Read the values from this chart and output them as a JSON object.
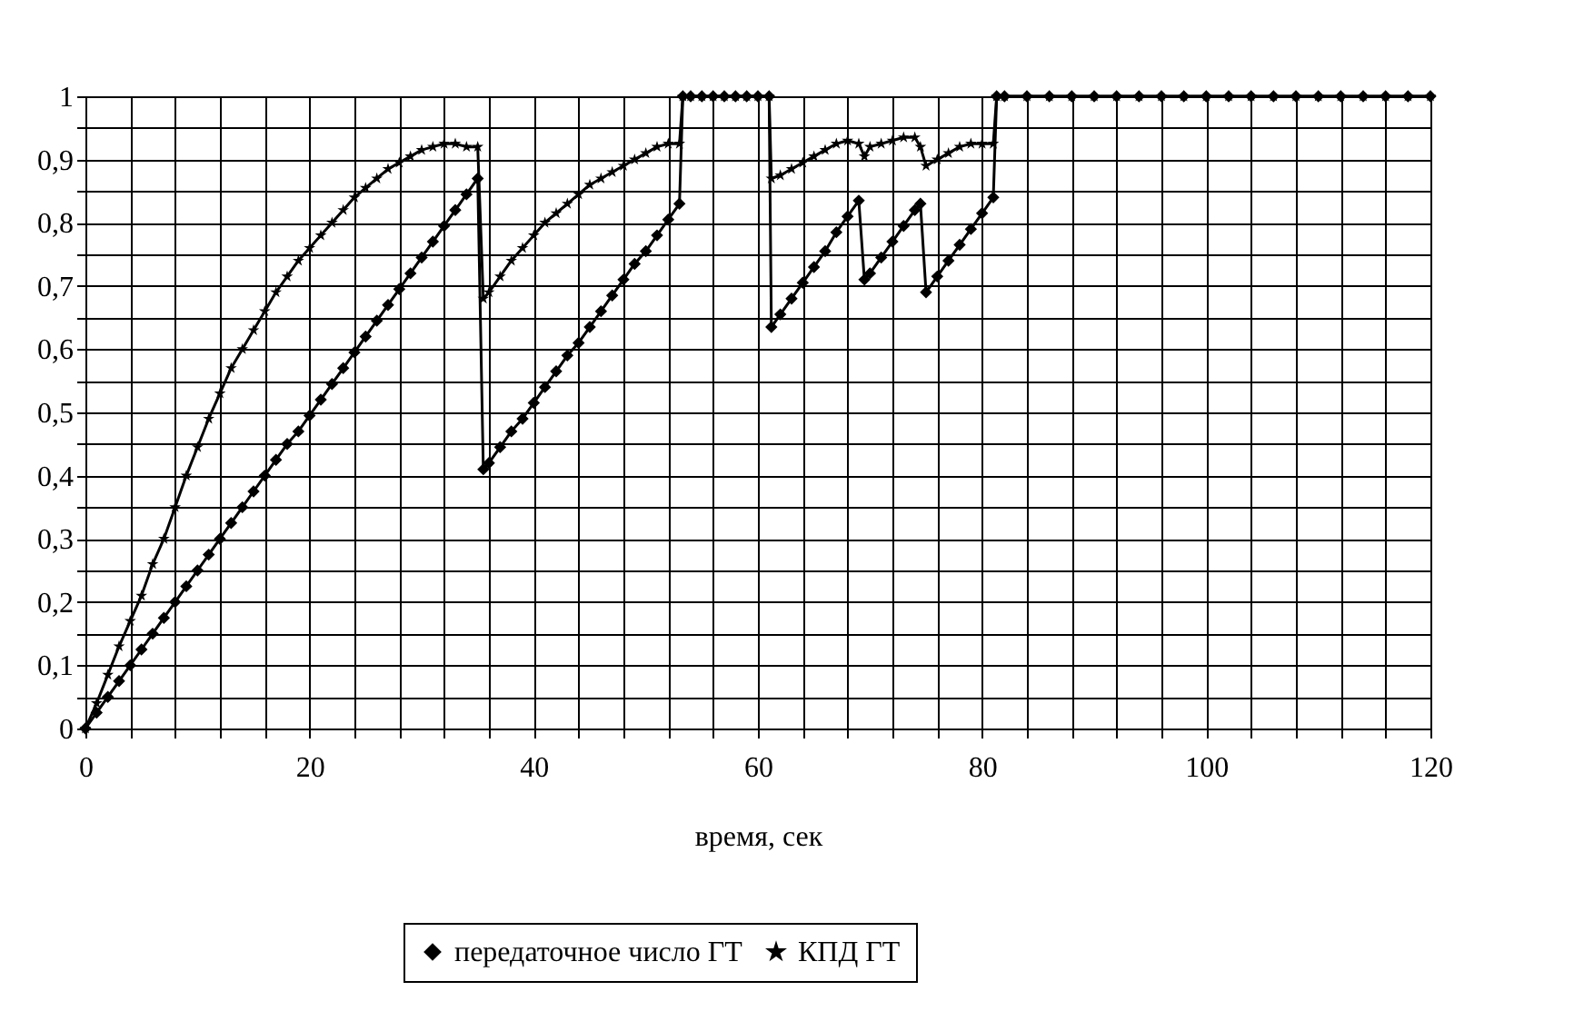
{
  "chart_data": {
    "type": "line",
    "xlabel": "время, сек",
    "x": [
      0,
      1,
      2,
      3,
      4,
      5,
      6,
      7,
      8,
      9,
      10,
      11,
      12,
      13,
      14,
      15,
      16,
      17,
      18,
      19,
      20,
      21,
      22,
      23,
      24,
      25,
      26,
      27,
      28,
      29,
      30,
      31,
      32,
      33,
      34,
      35,
      35.5,
      36,
      37,
      38,
      39,
      40,
      41,
      42,
      43,
      44,
      45,
      46,
      47,
      48,
      49,
      50,
      51,
      52,
      53,
      53.3,
      54,
      55,
      56,
      57,
      58,
      59,
      60,
      61,
      61.2,
      62,
      63,
      64,
      65,
      66,
      67,
      68,
      69,
      69.5,
      70,
      71,
      72,
      73,
      74,
      74.5,
      75,
      76,
      77,
      78,
      79,
      80,
      81,
      81.3,
      82,
      84,
      86,
      88,
      90,
      92,
      94,
      96,
      98,
      100,
      102,
      104,
      106,
      108,
      110,
      112,
      114,
      116,
      118,
      120
    ],
    "series": [
      {
        "name": "передаточное число ГТ",
        "color": "#000000",
        "marker": "diamond",
        "values": [
          0,
          0.025,
          0.05,
          0.075,
          0.1,
          0.125,
          0.15,
          0.175,
          0.2,
          0.225,
          0.25,
          0.275,
          0.3,
          0.325,
          0.35,
          0.375,
          0.4,
          0.425,
          0.45,
          0.47,
          0.495,
          0.52,
          0.545,
          0.57,
          0.595,
          0.62,
          0.645,
          0.67,
          0.695,
          0.72,
          0.745,
          0.77,
          0.795,
          0.82,
          0.845,
          0.87,
          0.41,
          0.42,
          0.445,
          0.47,
          0.49,
          0.515,
          0.54,
          0.565,
          0.59,
          0.61,
          0.635,
          0.66,
          0.685,
          0.71,
          0.735,
          0.755,
          0.78,
          0.805,
          0.83,
          1,
          1,
          1,
          1,
          1,
          1,
          1,
          1,
          1,
          0.635,
          0.655,
          0.68,
          0.705,
          0.73,
          0.755,
          0.785,
          0.81,
          0.835,
          0.71,
          0.72,
          0.745,
          0.77,
          0.795,
          0.82,
          0.83,
          0.69,
          0.715,
          0.74,
          0.765,
          0.79,
          0.815,
          0.84,
          1,
          1,
          1,
          1,
          1,
          1,
          1,
          1,
          1,
          1,
          1,
          1,
          1,
          1,
          1,
          1,
          1,
          1,
          1,
          1,
          1
        ]
      },
      {
        "name": "КПД ГТ",
        "color": "#000000",
        "marker": "star",
        "values": [
          0,
          0.04,
          0.085,
          0.13,
          0.17,
          0.21,
          0.26,
          0.3,
          0.35,
          0.4,
          0.445,
          0.49,
          0.53,
          0.57,
          0.6,
          0.63,
          0.66,
          0.69,
          0.715,
          0.74,
          0.76,
          0.78,
          0.8,
          0.82,
          0.84,
          0.855,
          0.87,
          0.885,
          0.895,
          0.905,
          0.915,
          0.92,
          0.925,
          0.925,
          0.92,
          0.92,
          0.68,
          0.69,
          0.715,
          0.74,
          0.76,
          0.78,
          0.8,
          0.815,
          0.83,
          0.845,
          0.86,
          0.87,
          0.88,
          0.89,
          0.9,
          0.91,
          0.92,
          0.925,
          0.925,
          1,
          1,
          1,
          1,
          1,
          1,
          1,
          1,
          1,
          0.87,
          0.875,
          0.885,
          0.895,
          0.905,
          0.915,
          0.925,
          0.93,
          0.925,
          0.905,
          0.92,
          0.925,
          0.93,
          0.935,
          0.935,
          0.92,
          0.89,
          0.9,
          0.91,
          0.92,
          0.925,
          0.925,
          0.925,
          1,
          1,
          1,
          1,
          1,
          1,
          1,
          1,
          1,
          1,
          1,
          1,
          1,
          1,
          1,
          1,
          1,
          1,
          1,
          1,
          1
        ]
      }
    ],
    "xlim": [
      0,
      120
    ],
    "xticks": [
      0,
      {
        "value": 4,
        "label": null
      },
      {
        "value": 8,
        "label": null
      },
      {
        "value": 12,
        "label": null
      },
      {
        "value": 16,
        "label": null
      },
      20,
      {
        "value": 24,
        "label": null
      },
      {
        "value": 28,
        "label": null
      },
      {
        "value": 32,
        "label": null
      },
      {
        "value": 36,
        "label": null
      },
      40,
      {
        "value": 44,
        "label": null
      },
      {
        "value": 48,
        "label": null
      },
      {
        "value": 52,
        "label": null
      },
      {
        "value": 56,
        "label": null
      },
      60,
      {
        "value": 64,
        "label": null
      },
      {
        "value": 68,
        "label": null
      },
      {
        "value": 72,
        "label": null
      },
      {
        "value": 76,
        "label": null
      },
      80,
      {
        "value": 84,
        "label": null
      },
      {
        "value": 88,
        "label": null
      },
      {
        "value": 92,
        "label": null
      },
      {
        "value": 96,
        "label": null
      },
      100,
      {
        "value": 104,
        "label": null
      },
      {
        "value": 108,
        "label": null
      },
      {
        "value": 112,
        "label": null
      },
      {
        "value": 116,
        "label": null
      },
      120
    ],
    "ylim": [
      0,
      1
    ],
    "yticks": [
      0,
      {
        "value": 0.05,
        "label": null
      },
      {
        "value": 0.1,
        "label": "0,1"
      },
      {
        "value": 0.15,
        "label": null
      },
      {
        "value": 0.2,
        "label": "0,2"
      },
      {
        "value": 0.25,
        "label": null
      },
      {
        "value": 0.3,
        "label": "0,3"
      },
      {
        "value": 0.35,
        "label": null
      },
      {
        "value": 0.4,
        "label": "0,4"
      },
      {
        "value": 0.45,
        "label": null
      },
      {
        "value": 0.5,
        "label": "0,5"
      },
      {
        "value": 0.55,
        "label": null
      },
      {
        "value": 0.6,
        "label": "0,6"
      },
      {
        "value": 0.65,
        "label": null
      },
      {
        "value": 0.7,
        "label": "0,7"
      },
      {
        "value": 0.75,
        "label": null
      },
      {
        "value": 0.8,
        "label": "0,8"
      },
      {
        "value": 0.85,
        "label": null
      },
      {
        "value": 0.9,
        "label": "0,9"
      },
      {
        "value": 0.95,
        "label": null
      },
      1
    ],
    "grid": true,
    "legend": "bottom",
    "line_style": "solid"
  }
}
